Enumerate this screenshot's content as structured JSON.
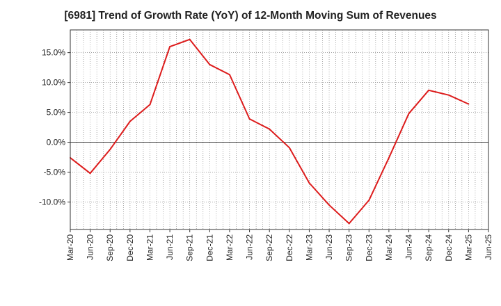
{
  "chart_data": {
    "type": "line",
    "title": "[6981]  Trend of Growth Rate (YoY) of 12-Month Moving Sum of Revenues",
    "xlabel": "",
    "ylabel": "",
    "x": [
      "Mar-20",
      "Jun-20",
      "Sep-20",
      "Dec-20",
      "Mar-21",
      "Jun-21",
      "Sep-21",
      "Dec-21",
      "Mar-22",
      "Jun-22",
      "Sep-22",
      "Dec-22",
      "Mar-23",
      "Jun-23",
      "Sep-23",
      "Dec-23",
      "Mar-24",
      "Jun-24",
      "Sep-24",
      "Dec-24",
      "Mar-25",
      "Jun-25"
    ],
    "series": [
      {
        "values": [
          -2.6,
          -5.2,
          -1.2,
          3.5,
          6.3,
          16.0,
          17.2,
          13.0,
          11.3,
          3.9,
          2.2,
          -0.9,
          -6.8,
          -10.5,
          -13.6,
          -9.7,
          -2.6,
          4.8,
          8.7,
          7.9,
          6.4,
          null
        ]
      }
    ],
    "yticks": [
      -10,
      -5,
      0,
      5,
      10,
      15
    ],
    "ytick_labels": [
      "-10.0%",
      "-5.0%",
      "0.0%",
      "5.0%",
      "10.0%",
      "15.0%"
    ],
    "ylim": [
      -14.6,
      18.8
    ],
    "grid": true,
    "line_color": "#dd1c1c"
  }
}
